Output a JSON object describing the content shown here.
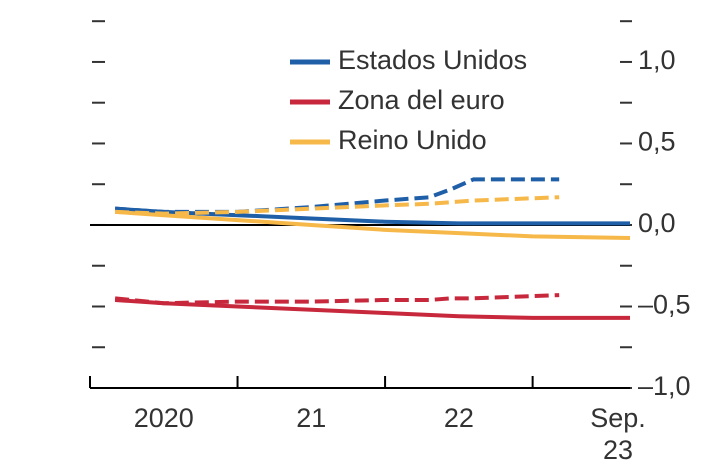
{
  "chart_data": {
    "type": "line",
    "xlim": [
      2020,
      2023.66
    ],
    "xticks": [
      2020,
      2021,
      2022,
      2023
    ],
    "xlabels": [
      {
        "value": 2020.5,
        "label": "2020"
      },
      {
        "value": 2021.5,
        "label": "21"
      },
      {
        "value": 2022.5,
        "label": "22"
      },
      {
        "value": 2023.66,
        "label": "Sep. 23"
      }
    ],
    "ylim": [
      -1,
      1.38
    ],
    "yticks": [
      {
        "value": 1.0,
        "label": "1,0"
      },
      {
        "value": 0.5,
        "label": "0,5"
      },
      {
        "value": 0.0,
        "label": "0,0"
      },
      {
        "value": -0.5,
        "label": "–0,5"
      },
      {
        "value": -1.0,
        "label": "–1,0"
      }
    ],
    "minor_yticks": [
      1.25,
      0.75,
      0.25,
      -0.25,
      -0.75
    ],
    "x": [
      2020.17,
      2020.5,
      2021,
      2021.5,
      2022,
      2022.5,
      2023,
      2023.66
    ],
    "forecast_x": [
      2020.17,
      2020.5,
      2021,
      2021.5,
      2022,
      2022.3,
      2022.45,
      2022.6,
      2023.18
    ],
    "series": [
      {
        "name": "Estados Unidos",
        "color": "#1f5fa8",
        "values": [
          0.1,
          0.08,
          0.06,
          0.04,
          0.02,
          0.01,
          0.01,
          0.01
        ],
        "forecast_values": [
          0.1,
          0.08,
          0.08,
          0.11,
          0.15,
          0.17,
          0.22,
          0.28,
          0.28
        ]
      },
      {
        "name": "Zona del euro",
        "color": "#c8283c",
        "values": [
          -0.46,
          -0.48,
          -0.5,
          -0.52,
          -0.54,
          -0.56,
          -0.57,
          -0.57
        ],
        "forecast_values": [
          -0.45,
          -0.48,
          -0.47,
          -0.47,
          -0.46,
          -0.46,
          -0.45,
          -0.45,
          -0.43
        ]
      },
      {
        "name": "Reino Unido",
        "color": "#f7b84a",
        "values": [
          0.08,
          0.06,
          0.03,
          0.0,
          -0.03,
          -0.05,
          -0.07,
          -0.08
        ],
        "forecast_values": [
          0.08,
          0.07,
          0.08,
          0.1,
          0.12,
          0.13,
          0.14,
          0.15,
          0.17
        ]
      }
    ]
  }
}
